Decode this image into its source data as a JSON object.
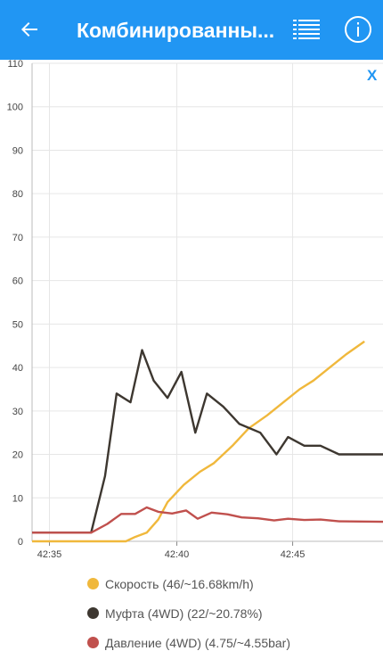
{
  "header": {
    "title": "Комбинированны...",
    "back_icon": "arrow-left-icon",
    "list_icon": "list-icon",
    "info_icon": "info-icon",
    "background": "#2196f3"
  },
  "chart": {
    "close_label": "X"
  },
  "chart_data": {
    "type": "line",
    "x_tick_labels": [
      "42:35",
      "42:40",
      "42:45"
    ],
    "x_ticks": [
      34.5,
      40,
      45
    ],
    "xlim": [
      33.75,
      48.9
    ],
    "ylim": [
      0,
      110
    ],
    "y_ticks": [
      0,
      10,
      20,
      30,
      40,
      50,
      60,
      70,
      80,
      90,
      100,
      110
    ],
    "grid": true,
    "legend_position": "bottom",
    "series": [
      {
        "name": "Скорость (46/~16.68km/h)",
        "color": "#f0b83c",
        "points": [
          [
            33.75,
            0
          ],
          [
            37.8,
            0
          ],
          [
            38.2,
            1
          ],
          [
            38.7,
            2
          ],
          [
            39.2,
            5
          ],
          [
            39.6,
            9
          ],
          [
            40.3,
            13
          ],
          [
            41.0,
            16
          ],
          [
            41.6,
            18
          ],
          [
            42.4,
            22
          ],
          [
            43.1,
            26
          ],
          [
            43.9,
            29
          ],
          [
            44.6,
            32
          ],
          [
            45.3,
            35
          ],
          [
            45.9,
            37
          ],
          [
            46.6,
            40
          ],
          [
            47.3,
            43
          ],
          [
            48.1,
            46
          ]
        ]
      },
      {
        "name": "Муфта (4WD) (22/~20.78%)",
        "color": "#3d3730",
        "points": [
          [
            33.75,
            2
          ],
          [
            36.3,
            2
          ],
          [
            36.9,
            15
          ],
          [
            37.4,
            34
          ],
          [
            38.0,
            32
          ],
          [
            38.5,
            44
          ],
          [
            39.0,
            37
          ],
          [
            39.6,
            33
          ],
          [
            40.2,
            39
          ],
          [
            40.8,
            25
          ],
          [
            41.3,
            34
          ],
          [
            42.0,
            31
          ],
          [
            42.7,
            27
          ],
          [
            43.6,
            25
          ],
          [
            44.3,
            20
          ],
          [
            44.8,
            24
          ],
          [
            45.5,
            22
          ],
          [
            46.2,
            22
          ],
          [
            47.0,
            20
          ],
          [
            48.9,
            20
          ]
        ]
      },
      {
        "name": "Давление (4WD) (4.75/~4.55bar)",
        "color": "#c0504d",
        "points": [
          [
            33.75,
            2
          ],
          [
            36.3,
            2
          ],
          [
            37.0,
            4
          ],
          [
            37.6,
            6.3
          ],
          [
            38.2,
            6.3
          ],
          [
            38.7,
            7.8
          ],
          [
            39.2,
            6.8
          ],
          [
            39.8,
            6.4
          ],
          [
            40.4,
            7.1
          ],
          [
            40.9,
            5.2
          ],
          [
            41.5,
            6.6
          ],
          [
            42.2,
            6.2
          ],
          [
            42.8,
            5.5
          ],
          [
            43.5,
            5.3
          ],
          [
            44.2,
            4.8
          ],
          [
            44.8,
            5.2
          ],
          [
            45.5,
            4.9
          ],
          [
            46.2,
            5
          ],
          [
            47.0,
            4.6
          ],
          [
            48.9,
            4.5
          ]
        ]
      }
    ]
  },
  "legend": [
    {
      "label": "Скорость (46/~16.68km/h)",
      "color": "#f0b83c"
    },
    {
      "label": "Муфта (4WD) (22/~20.78%)",
      "color": "#3d3730"
    },
    {
      "label": "Давление (4WD) (4.75/~4.55bar)",
      "color": "#c0504d"
    }
  ]
}
